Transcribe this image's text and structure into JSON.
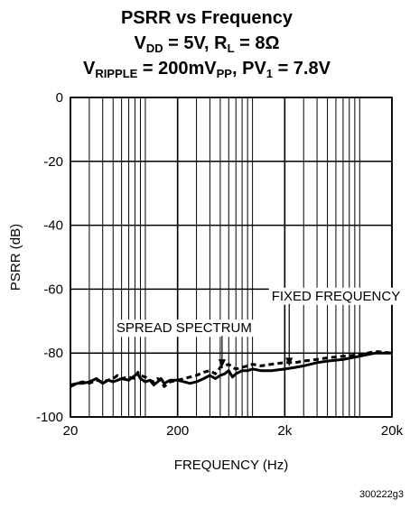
{
  "chart_data": {
    "type": "line",
    "title": {
      "line1": "PSRR vs Frequency",
      "line2": {
        "a": "V",
        "a_sub": "DD",
        "b": " = 5V, R",
        "b_sub": "L",
        "c": " = 8Ω"
      },
      "line3": {
        "a": "V",
        "a_sub": "RIPPLE",
        "b": " = 200mV",
        "b_sub": "PP",
        "c": ", PV",
        "c_sub": "1",
        "d": " = 7.8V"
      }
    },
    "xlabel": "FREQUENCY (Hz)",
    "ylabel": "PSRR (dB)",
    "xscale": "log",
    "xlim": [
      20,
      20000
    ],
    "ylim": [
      -100,
      0
    ],
    "x_ticks": [
      {
        "value": 20,
        "label": "20"
      },
      {
        "value": 200,
        "label": "200"
      },
      {
        "value": 2000,
        "label": "2k"
      },
      {
        "value": 20000,
        "label": "20k"
      }
    ],
    "y_ticks": [
      {
        "value": 0,
        "label": "0"
      },
      {
        "value": -20,
        "label": "-20"
      },
      {
        "value": -40,
        "label": "-40"
      },
      {
        "value": -60,
        "label": "-60"
      },
      {
        "value": -80,
        "label": "-80"
      },
      {
        "value": -100,
        "label": "-100"
      }
    ],
    "grid": true,
    "series": [
      {
        "name": "SPREAD SPECTRUM",
        "style": "solid",
        "color": "#000000",
        "points": [
          [
            20,
            -90.5
          ],
          [
            23,
            -89.5
          ],
          [
            26,
            -89.5
          ],
          [
            30,
            -89
          ],
          [
            35,
            -88
          ],
          [
            40,
            -89.5
          ],
          [
            45,
            -88.5
          ],
          [
            50,
            -89
          ],
          [
            55,
            -88.5
          ],
          [
            60,
            -88
          ],
          [
            70,
            -88.5
          ],
          [
            80,
            -87
          ],
          [
            85,
            -86.5
          ],
          [
            90,
            -88
          ],
          [
            100,
            -89
          ],
          [
            110,
            -88.5
          ],
          [
            120,
            -90
          ],
          [
            130,
            -89
          ],
          [
            140,
            -88
          ],
          [
            150,
            -89.5
          ],
          [
            170,
            -88.5
          ],
          [
            200,
            -88.5
          ],
          [
            230,
            -89
          ],
          [
            260,
            -89.5
          ],
          [
            300,
            -89
          ],
          [
            350,
            -88
          ],
          [
            400,
            -87
          ],
          [
            450,
            -88
          ],
          [
            500,
            -87
          ],
          [
            550,
            -86.5
          ],
          [
            600,
            -85.5
          ],
          [
            650,
            -87.5
          ],
          [
            700,
            -86.5
          ],
          [
            800,
            -85.5
          ],
          [
            900,
            -85.5
          ],
          [
            1000,
            -85
          ],
          [
            1200,
            -85.5
          ],
          [
            1500,
            -85.5
          ],
          [
            2000,
            -85
          ],
          [
            2500,
            -84.5
          ],
          [
            3000,
            -84
          ],
          [
            4000,
            -83
          ],
          [
            5000,
            -82.5
          ],
          [
            7000,
            -82
          ],
          [
            10000,
            -81
          ],
          [
            14000,
            -80
          ],
          [
            20000,
            -80
          ]
        ]
      },
      {
        "name": "FIXED FREQUENCY",
        "style": "dashed",
        "color": "#000000",
        "points": [
          [
            20,
            -90
          ],
          [
            23,
            -89.5
          ],
          [
            26,
            -89
          ],
          [
            30,
            -89.5
          ],
          [
            35,
            -88.5
          ],
          [
            40,
            -89
          ],
          [
            45,
            -88.5
          ],
          [
            50,
            -88
          ],
          [
            55,
            -87
          ],
          [
            60,
            -88
          ],
          [
            70,
            -87.5
          ],
          [
            80,
            -88
          ],
          [
            85,
            -86
          ],
          [
            90,
            -87
          ],
          [
            100,
            -87.5
          ],
          [
            110,
            -88.5
          ],
          [
            120,
            -89
          ],
          [
            130,
            -88
          ],
          [
            140,
            -88.5
          ],
          [
            150,
            -90.5
          ],
          [
            170,
            -89
          ],
          [
            200,
            -88.5
          ],
          [
            230,
            -88
          ],
          [
            260,
            -87.5
          ],
          [
            300,
            -87
          ],
          [
            350,
            -86
          ],
          [
            400,
            -85.5
          ],
          [
            450,
            -86.5
          ],
          [
            500,
            -84.5
          ],
          [
            550,
            -84
          ],
          [
            600,
            -83.5
          ],
          [
            650,
            -84.5
          ],
          [
            700,
            -85
          ],
          [
            800,
            -84.5
          ],
          [
            900,
            -84
          ],
          [
            1000,
            -83.5
          ],
          [
            1200,
            -84
          ],
          [
            1500,
            -83.5
          ],
          [
            2000,
            -83
          ],
          [
            2500,
            -83
          ],
          [
            3000,
            -82.5
          ],
          [
            4000,
            -82
          ],
          [
            5000,
            -81.5
          ],
          [
            7000,
            -81
          ],
          [
            10000,
            -80.5
          ],
          [
            14000,
            -79.5
          ],
          [
            20000,
            -80
          ]
        ]
      }
    ],
    "annotations": [
      {
        "text": "FIXED FREQUENCY",
        "label_at": [
          6000,
          -63.5
        ],
        "arrow_to": [
          2200,
          -84
        ]
      },
      {
        "text": "SPREAD SPECTRUM",
        "label_at": [
          230,
          -73.5
        ],
        "arrow_to": [
          520,
          -84.5
        ]
      }
    ],
    "figure_id": "300222g3"
  }
}
